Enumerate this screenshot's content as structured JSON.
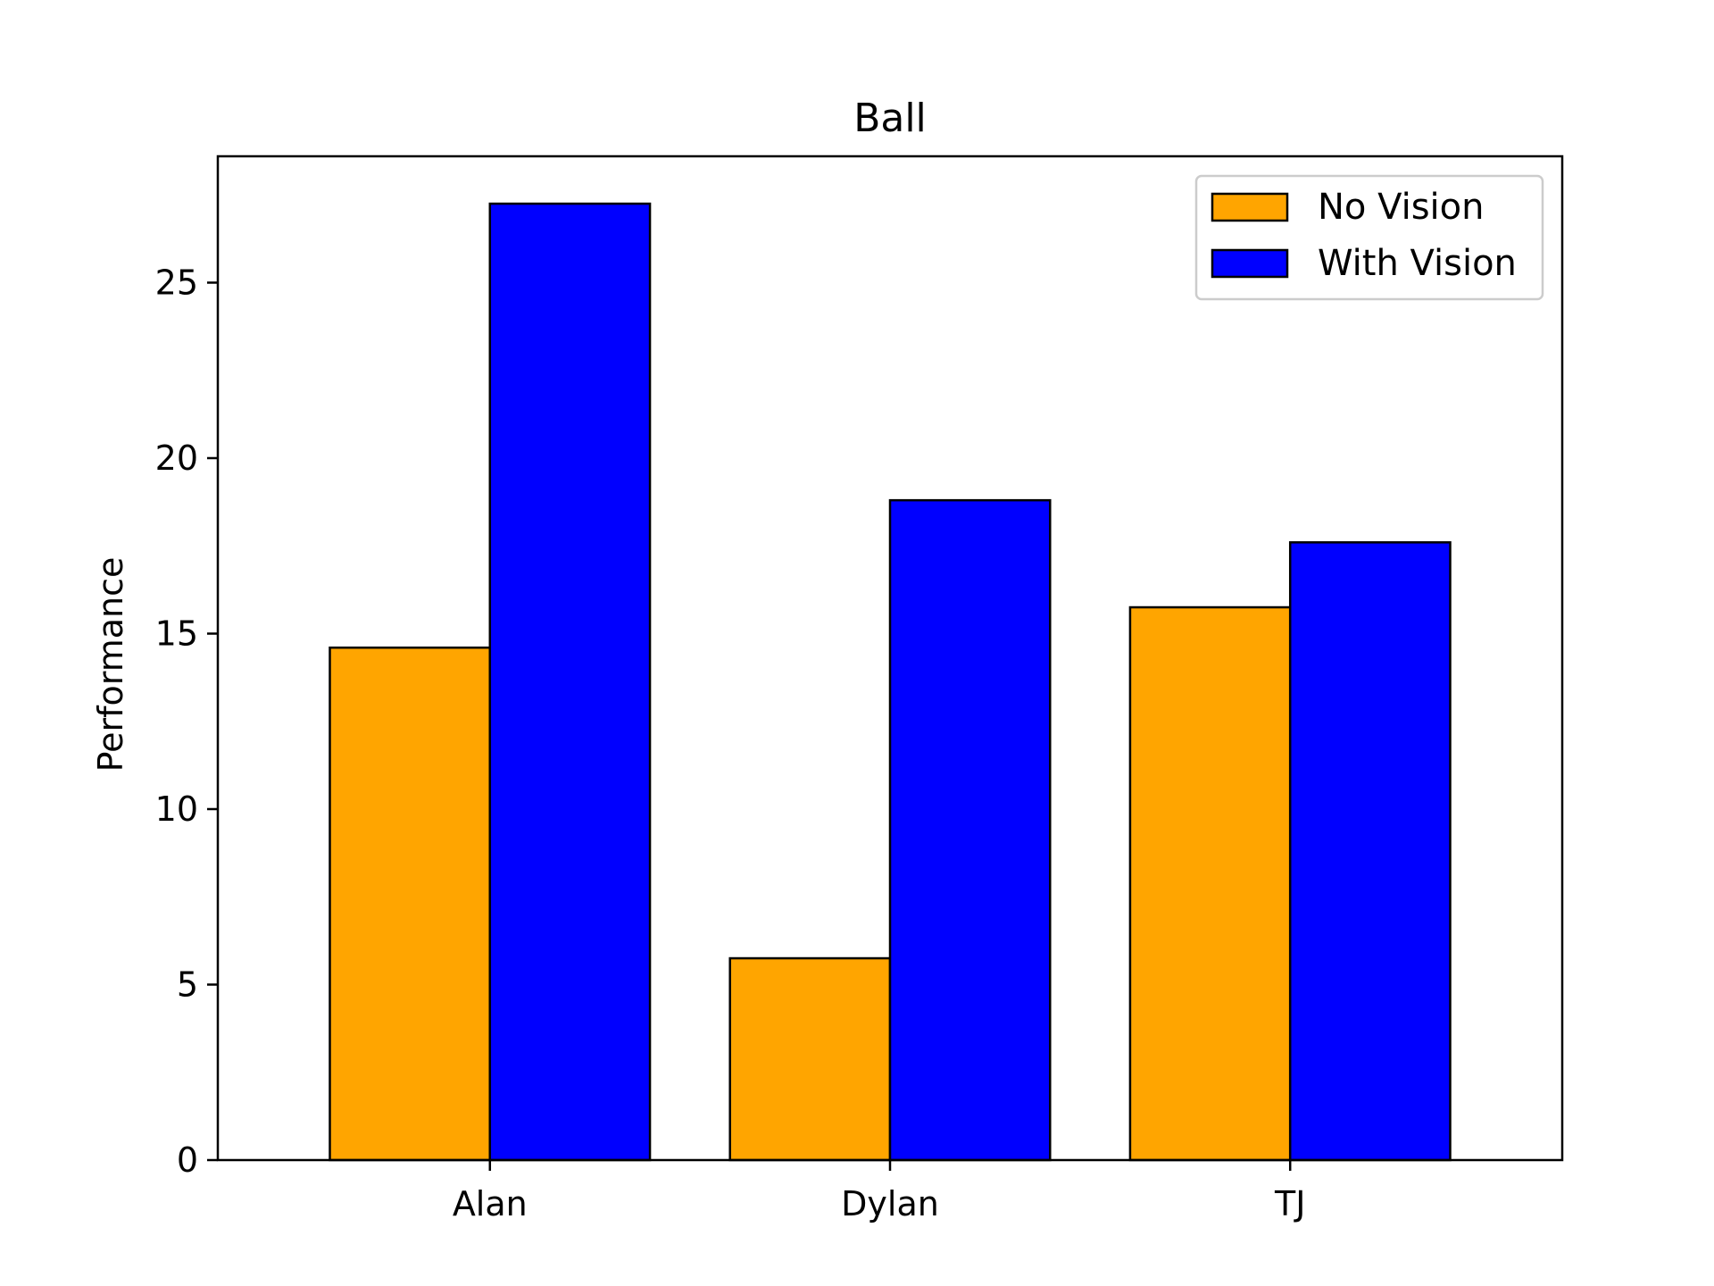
{
  "chart_data": {
    "type": "bar",
    "title": "Ball",
    "xlabel": "",
    "ylabel": "Performance",
    "categories": [
      "Alan",
      "Dylan",
      "TJ"
    ],
    "series": [
      {
        "name": "No Vision",
        "color": "#FFA500",
        "values": [
          14.6,
          5.75,
          15.75
        ]
      },
      {
        "name": "With Vision",
        "color": "#0000FF",
        "values": [
          27.25,
          18.8,
          17.6
        ]
      }
    ],
    "ylim": [
      0,
      28.6
    ],
    "yticks": [
      "0",
      "5",
      "10",
      "15",
      "20",
      "25"
    ],
    "grid": false,
    "legend": "top-right",
    "edge_color": "#000000"
  }
}
